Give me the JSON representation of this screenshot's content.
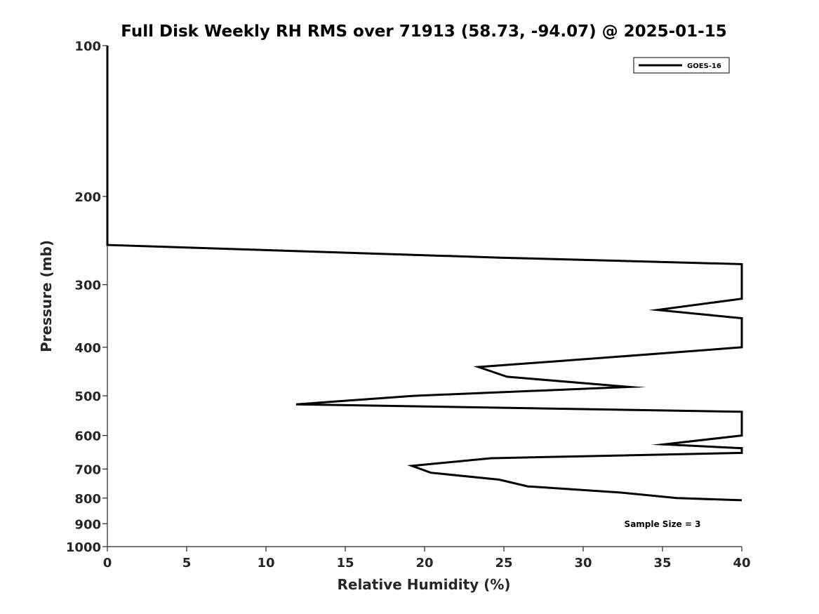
{
  "chart_data": {
    "type": "line",
    "title": "Full Disk Weekly RH RMS over 71913 (58.73, -94.07) @ 2025-01-15",
    "xlabel": "Relative Humidity (%)",
    "ylabel": "Pressure (mb)",
    "xlim": [
      0,
      40
    ],
    "ylim": [
      100,
      1000
    ],
    "y_scale": "log",
    "y_reversed": true,
    "xticks": [
      0,
      5,
      10,
      15,
      20,
      25,
      30,
      35,
      40
    ],
    "yticks": [
      100,
      200,
      300,
      400,
      500,
      600,
      700,
      800,
      900,
      1000
    ],
    "grid": false,
    "legend_position": "top-right",
    "annotation": "Sample Size = 3",
    "series": [
      {
        "name": "GOES-16",
        "color": "#000000",
        "points": [
          [
            0,
            100
          ],
          [
            0,
            150
          ],
          [
            0,
            200
          ],
          [
            0,
            250
          ],
          [
            24.8,
            265
          ],
          [
            40,
            273
          ],
          [
            40,
            320
          ],
          [
            34.7,
            337
          ],
          [
            40,
            350
          ],
          [
            40,
            400
          ],
          [
            32.5,
            417
          ],
          [
            23.4,
            438
          ],
          [
            25.2,
            458
          ],
          [
            32.9,
            480
          ],
          [
            19.3,
            500
          ],
          [
            11.9,
            520
          ],
          [
            40,
            538
          ],
          [
            40,
            600
          ],
          [
            35.1,
            625
          ],
          [
            40,
            636
          ],
          [
            40,
            650
          ],
          [
            24.2,
            666
          ],
          [
            19.2,
            690
          ],
          [
            20.4,
            712
          ],
          [
            24.7,
            735
          ],
          [
            26.5,
            758
          ],
          [
            32.4,
            780
          ],
          [
            35.9,
            800
          ],
          [
            40,
            808
          ]
        ]
      }
    ]
  }
}
